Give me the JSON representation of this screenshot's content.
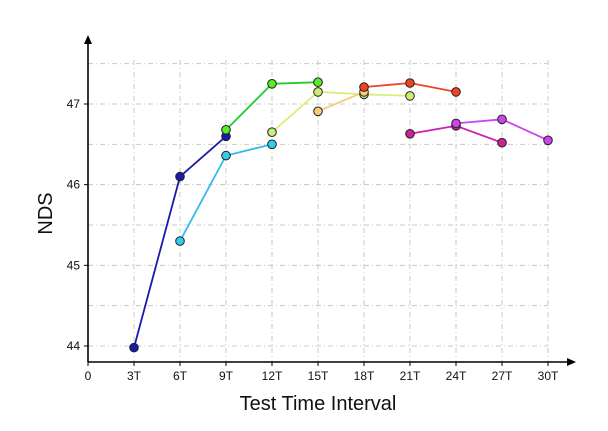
{
  "chart_data": {
    "type": "line",
    "title": "",
    "xlabel": "Test Time Interval",
    "ylabel": "NDS",
    "x_categories": [
      "0",
      "3T",
      "6T",
      "9T",
      "12T",
      "15T",
      "18T",
      "21T",
      "24T",
      "27T",
      "30T"
    ],
    "x_range": [
      0,
      30
    ],
    "y_ticks": [
      44,
      45,
      46,
      47
    ],
    "y_range": [
      43.8,
      47.5
    ],
    "grid": true,
    "legend": "none",
    "series": [
      {
        "color": "#1a1aaa",
        "marker_color": "#1a1aaa",
        "points": [
          [
            3,
            43.98
          ],
          [
            6,
            46.1
          ],
          [
            9,
            46.6
          ]
        ]
      },
      {
        "color": "#22cc33",
        "marker_color": "#55ee22",
        "points": [
          [
            9,
            46.68
          ],
          [
            12,
            47.25
          ],
          [
            15,
            47.27
          ]
        ]
      },
      {
        "color": "#33bbee",
        "marker_color": "#33ccee",
        "points": [
          [
            6,
            45.3
          ],
          [
            9,
            46.36
          ],
          [
            12,
            46.5
          ]
        ]
      },
      {
        "color": "#ddee77",
        "marker_color": "#ccee77",
        "points": [
          [
            12,
            46.65
          ],
          [
            15,
            47.15
          ],
          [
            18,
            47.12
          ],
          [
            21,
            47.1
          ]
        ]
      },
      {
        "color": "#f5cc77",
        "marker_color": "#f5cc77",
        "points": [
          [
            15,
            46.91
          ],
          [
            18,
            47.15
          ]
        ]
      },
      {
        "color": "#ee4422",
        "marker_color": "#ee4422",
        "points": [
          [
            18,
            47.21
          ],
          [
            21,
            47.26
          ],
          [
            24,
            47.15
          ]
        ]
      },
      {
        "color": "#cc22aa",
        "marker_color": "#cc2299",
        "points": [
          [
            21,
            46.63
          ],
          [
            24,
            46.73
          ],
          [
            27,
            46.52
          ]
        ]
      },
      {
        "color": "#cc44ee",
        "marker_color": "#cc44ee",
        "points": [
          [
            24,
            46.76
          ],
          [
            27,
            46.81
          ],
          [
            30,
            46.55
          ]
        ]
      }
    ]
  }
}
